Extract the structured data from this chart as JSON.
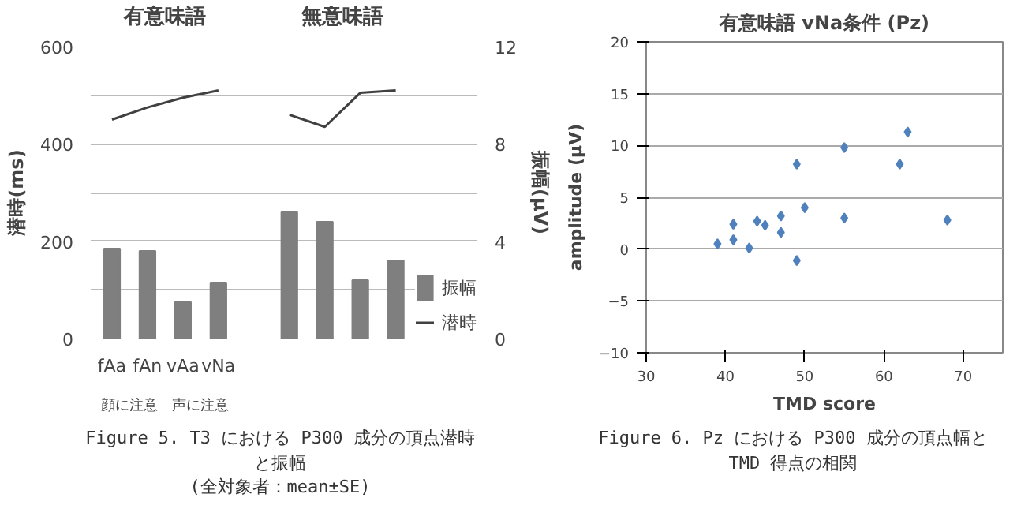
{
  "chart_data": [
    {
      "type": "bar",
      "categories": [
        "fAa",
        "fAn",
        "vAa",
        "vNa",
        null,
        null,
        null,
        null,
        null
      ],
      "series": [
        {
          "name": "振幅",
          "type": "bar",
          "axis": "y2",
          "color": "#7f7f7f",
          "values": [
            3.7,
            3.6,
            1.5,
            2.3,
            null,
            5.2,
            4.8,
            2.4,
            3.2
          ]
        },
        {
          "name": "潜時",
          "type": "line",
          "color": "#404040",
          "values": [
            450,
            475,
            495,
            510,
            null,
            460,
            435,
            505,
            510
          ]
        }
      ],
      "ylim": [
        0,
        600
      ],
      "yticks": [
        0,
        {
          "value": 100,
          "label": null
        },
        200,
        {
          "value": 300,
          "label": null
        },
        400,
        {
          "value": 500,
          "label": null
        },
        600
      ],
      "y2lim": [
        0,
        12
      ],
      "y2ticks": [
        0,
        4,
        8,
        12
      ],
      "ylabel": "潜時(ms)",
      "y2label": "振幅(μV)",
      "legend": "right",
      "grid": "y",
      "annotations": [
        "有意味語",
        "無意味語",
        "顔に注意",
        "声に注意",
        "Figure 5. T3 における P300 成分の頂点潜時と振幅",
        "(全対象者：mean±SE)"
      ]
    },
    {
      "type": "scatter",
      "title": "有意味語 vNa条件 (Pz)",
      "xlabel": "TMD score",
      "ylabel": "amplitude (μV)",
      "x": [
        39,
        41,
        41,
        43,
        44,
        45,
        47,
        47,
        49,
        49,
        50,
        55,
        55,
        62,
        63,
        68
      ],
      "values": [
        0.5,
        2.4,
        0.9,
        0.1,
        2.7,
        2.3,
        3.2,
        1.6,
        8.2,
        -1.1,
        4.0,
        9.8,
        3.0,
        8.2,
        11.3,
        2.8
      ],
      "color": "#4f81bd",
      "marker": "diamond",
      "grid": "y",
      "xlim": [
        30,
        75
      ],
      "xticks": [
        30,
        40,
        50,
        60,
        70
      ],
      "ylim": [
        -10,
        20
      ],
      "yticks": [
        -10,
        -5,
        0,
        5,
        10,
        15,
        20
      ],
      "annotations": [
        "Figure 6. Pz における P300 成分の頂点幅と TMD 得点の相関"
      ]
    }
  ]
}
